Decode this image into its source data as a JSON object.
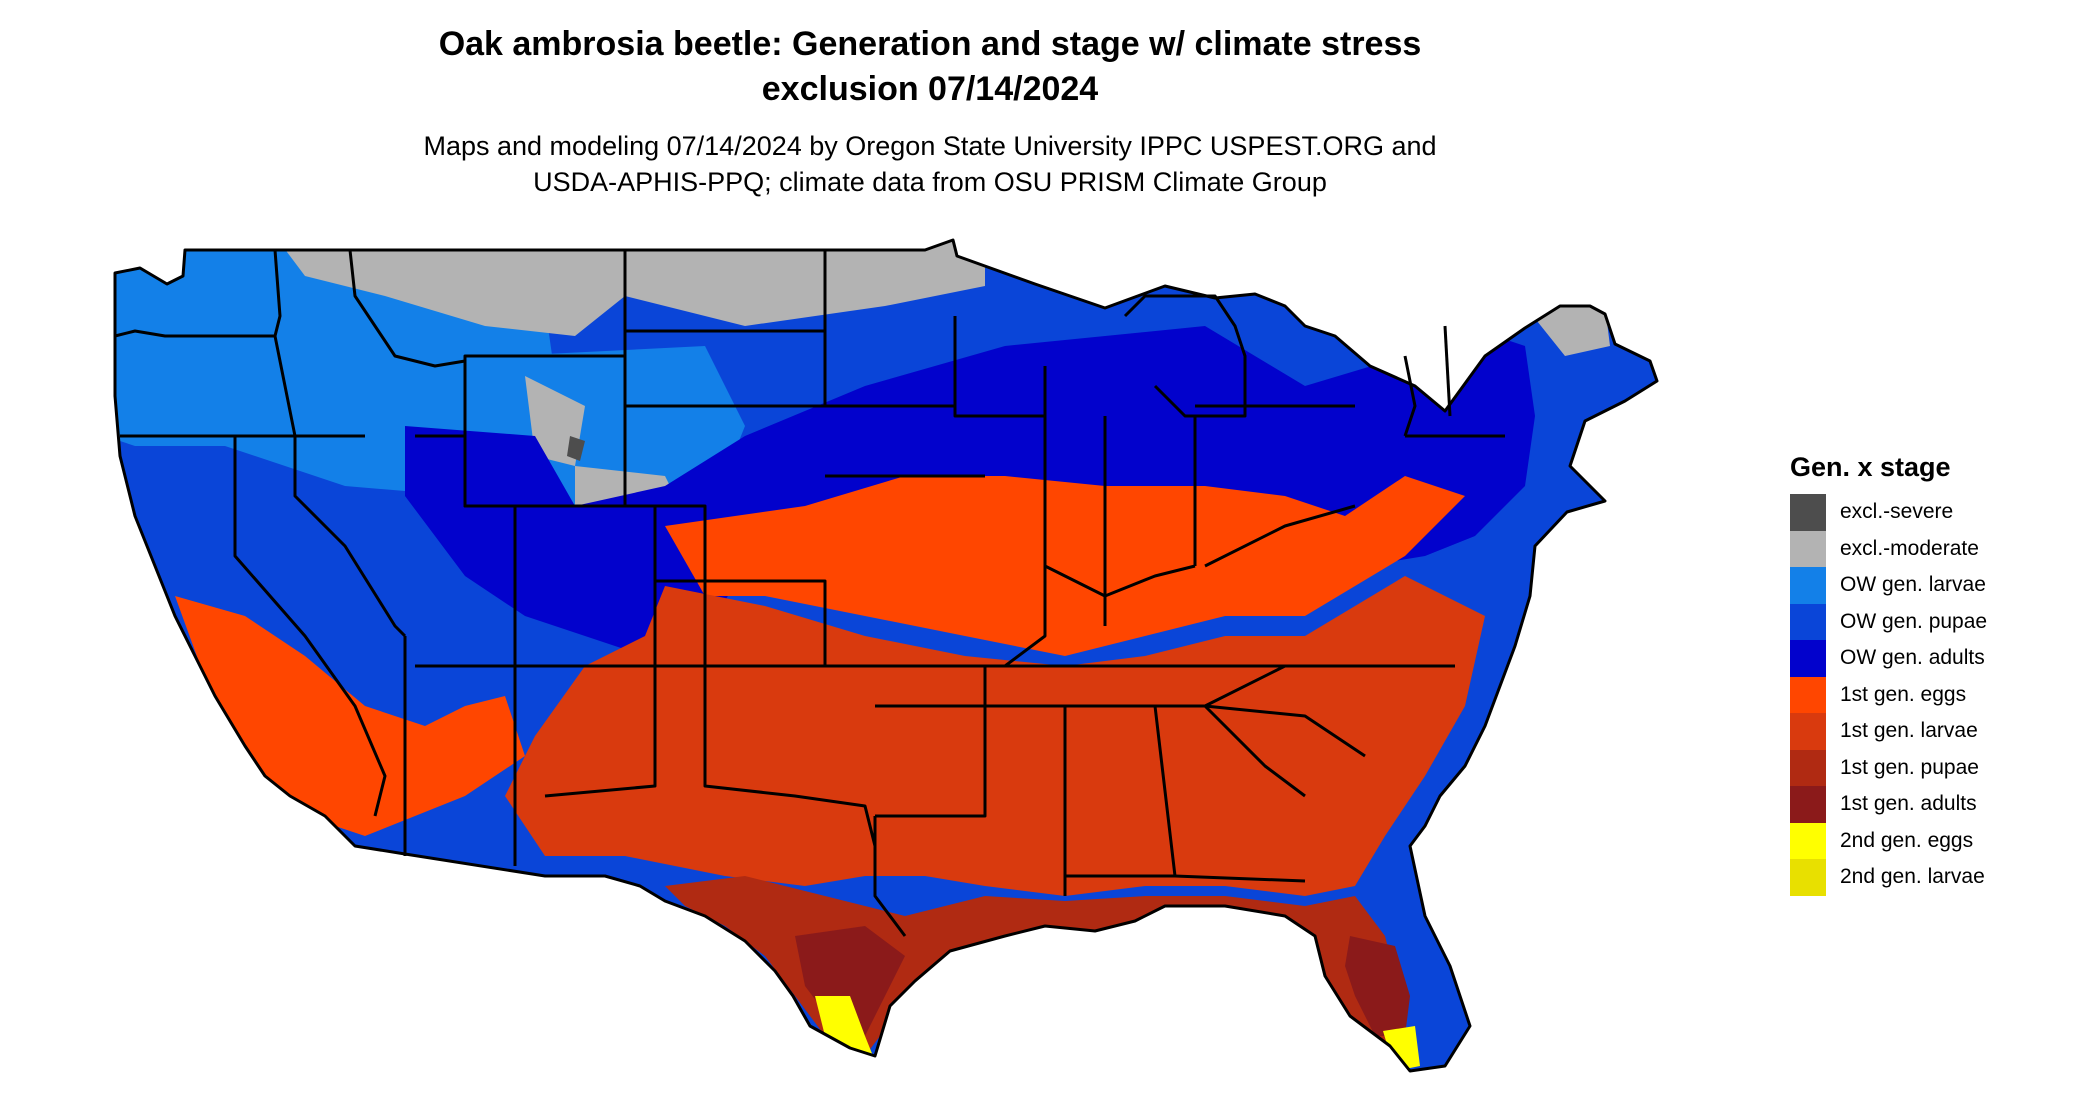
{
  "title": {
    "line1": "Oak ambrosia beetle: Generation and stage w/ climate stress",
    "line2": "exclusion 07/14/2024"
  },
  "subtitle": {
    "line1": "Maps and modeling 07/14/2024 by Oregon State University IPPC USPEST.ORG and",
    "line2": "USDA-APHIS-PPQ; climate data from OSU PRISM Climate Group"
  },
  "legend": {
    "title": "Gen. x stage",
    "items": [
      {
        "label": "excl.-severe",
        "color": "#4d4d4d"
      },
      {
        "label": "excl.-moderate",
        "color": "#b3b3b3"
      },
      {
        "label": "OW gen. larvae",
        "color": "#1380e8"
      },
      {
        "label": "OW gen. pupae",
        "color": "#0a45d8"
      },
      {
        "label": "OW gen. adults",
        "color": "#0202cc"
      },
      {
        "label": "1st gen. eggs",
        "color": "#ff4600"
      },
      {
        "label": "1st gen. larvae",
        "color": "#d93a0e"
      },
      {
        "label": "1st gen. pupae",
        "color": "#b02a12"
      },
      {
        "label": "1st gen. adults",
        "color": "#8b1a1a"
      },
      {
        "label": "2nd gen. eggs",
        "color": "#ffff00"
      },
      {
        "label": "2nd gen. larvae",
        "color": "#e8e000"
      }
    ]
  },
  "map": {
    "region": "Contiguous United States",
    "borders": "state boundaries",
    "border_color": "#000000"
  }
}
